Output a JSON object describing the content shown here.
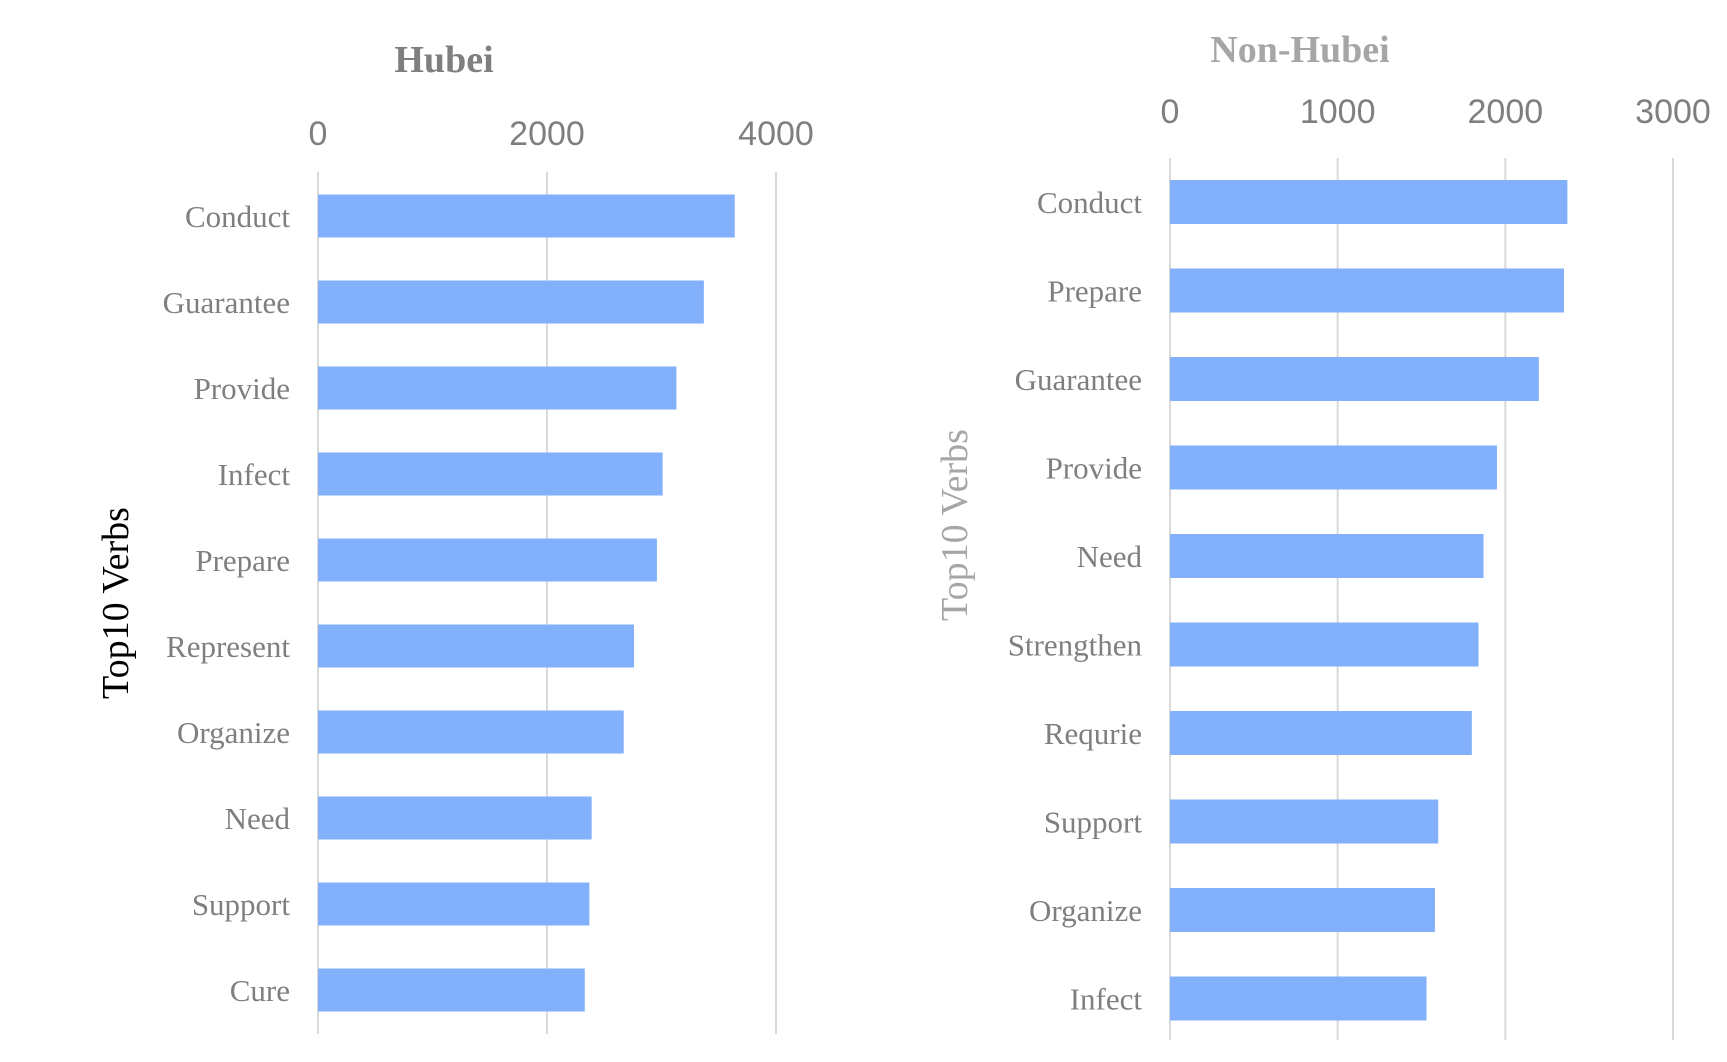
{
  "chart_data": [
    {
      "type": "bar",
      "orientation": "horizontal",
      "title": "Hubei",
      "ylabel": "Top10 Verbs",
      "xlabel": "",
      "categories": [
        "Conduct",
        "Guarantee",
        "Provide",
        "Infect",
        "Prepare",
        "Represent",
        "Organize",
        "Need",
        "Support",
        "Cure"
      ],
      "values": [
        3640,
        3370,
        3130,
        3010,
        2960,
        2760,
        2670,
        2390,
        2370,
        2330
      ],
      "xlim": [
        0,
        4000
      ],
      "xticks": [
        "0",
        "2000",
        "4000"
      ],
      "x_axis_position": "top",
      "grid": true,
      "bar_color": "#82b0fb",
      "title_color": "#7f7f7f",
      "ylabel_color": "#000000"
    },
    {
      "type": "bar",
      "orientation": "horizontal",
      "title": "Non-Hubei",
      "ylabel": "Top10 Verbs",
      "xlabel": "",
      "categories": [
        "Conduct",
        "Prepare",
        "Guarantee",
        "Provide",
        "Need",
        "Strengthen",
        "Requrie",
        "Support",
        "Organize",
        "Infect"
      ],
      "values": [
        2370,
        2350,
        2200,
        1950,
        1870,
        1840,
        1800,
        1600,
        1580,
        1530
      ],
      "xlim": [
        0,
        3000
      ],
      "xticks": [
        "0",
        "1000",
        "2000",
        "3000"
      ],
      "x_axis_position": "top",
      "grid": true,
      "bar_color": "#82b0fb",
      "title_color": "#a6a6a6",
      "ylabel_color": "#a6a6a6"
    }
  ]
}
